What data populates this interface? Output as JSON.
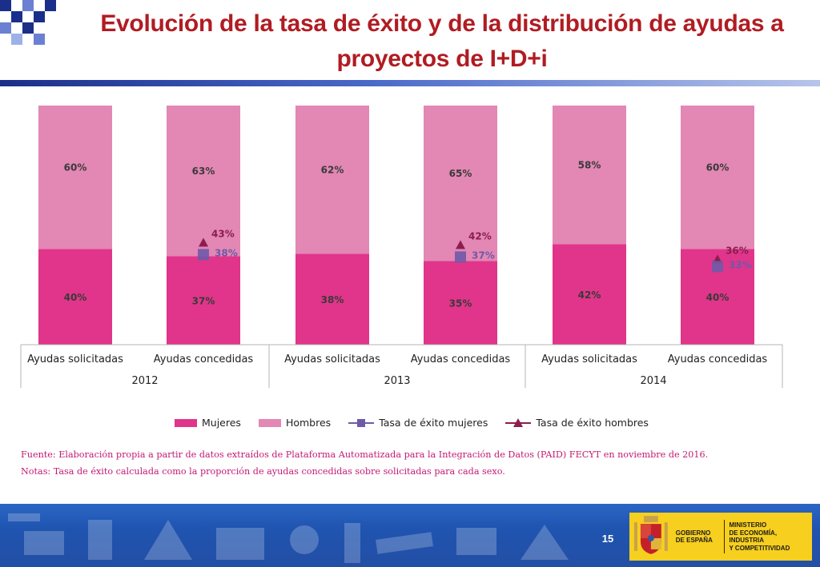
{
  "title": {
    "line1": "Evolución de la tasa de éxito y de la distribución de ayudas a",
    "line2": "proyectos de I+D+i"
  },
  "colors": {
    "mujeres": "#e0358a",
    "hombres": "#e387b4",
    "tasa_mujeres": "#6f5aa8",
    "tasa_hombres": "#8b1e4e",
    "tasa_mujeres_text": "#6f5aa8",
    "tasa_hombres_text": "#8b1e4e",
    "title_red": "#b01c22",
    "note_pink": "#c21a72",
    "footer_blue": "#2c66c4",
    "logo_yellow": "#f7cf1e"
  },
  "chart_data": {
    "type": "bar",
    "stacked": true,
    "normalized_percent": true,
    "groups": [
      {
        "year": "2012",
        "categories": [
          "Ayudas solicitadas",
          "Ayudas concedidas"
        ]
      },
      {
        "year": "2013",
        "categories": [
          "Ayudas solicitadas",
          "Ayudas concedidas"
        ]
      },
      {
        "year": "2014",
        "categories": [
          "Ayudas solicitadas",
          "Ayudas concedidas"
        ]
      }
    ],
    "categories": [
      "Ayudas solicitadas",
      "Ayudas concedidas",
      "Ayudas solicitadas",
      "Ayudas concedidas",
      "Ayudas solicitadas",
      "Ayudas concedidas"
    ],
    "series": [
      {
        "name": "Mujeres",
        "values": [
          40,
          37,
          38,
          35,
          42,
          40
        ],
        "labels": [
          "40%",
          "37%",
          "38%",
          "35%",
          "42%",
          "40%"
        ]
      },
      {
        "name": "Hombres",
        "values": [
          60,
          63,
          62,
          65,
          58,
          60
        ],
        "labels": [
          "60%",
          "63%",
          "62%",
          "65%",
          "58%",
          "60%"
        ]
      }
    ],
    "rates": [
      {
        "name": "Tasa de éxito mujeres",
        "marker": "square",
        "values": [
          null,
          38,
          null,
          37,
          null,
          33
        ],
        "labels": [
          null,
          "38%",
          null,
          "37%",
          null,
          "33%"
        ]
      },
      {
        "name": "Tasa de éxito hombres",
        "marker": "triangle",
        "values": [
          null,
          43,
          null,
          42,
          null,
          36
        ],
        "labels": [
          null,
          "43%",
          null,
          "42%",
          null,
          "36%"
        ]
      }
    ],
    "ylim": [
      0,
      100
    ],
    "legend": [
      "Mujeres",
      "Hombres",
      "Tasa de éxito mujeres",
      "Tasa de éxito hombres"
    ],
    "legend_position": "bottom"
  },
  "notes": {
    "source": "Fuente: Elaboración propia a partir de datos extraídos de Plataforma Automatizada para la Integración de Datos (PAID) FECYT en noviembre de 2016.",
    "note": "Notas: Tasa de éxito calculada como la proporción de ayudas concedidas sobre solicitadas para cada sexo."
  },
  "footer": {
    "page_number": "15",
    "logo_line1": "GOBIERNO",
    "logo_line2": "DE ESPAÑA",
    "ministry_line1": "MINISTERIO",
    "ministry_line2": "DE ECONOMÍA, INDUSTRIA",
    "ministry_line3": "Y COMPETITIVIDAD"
  }
}
